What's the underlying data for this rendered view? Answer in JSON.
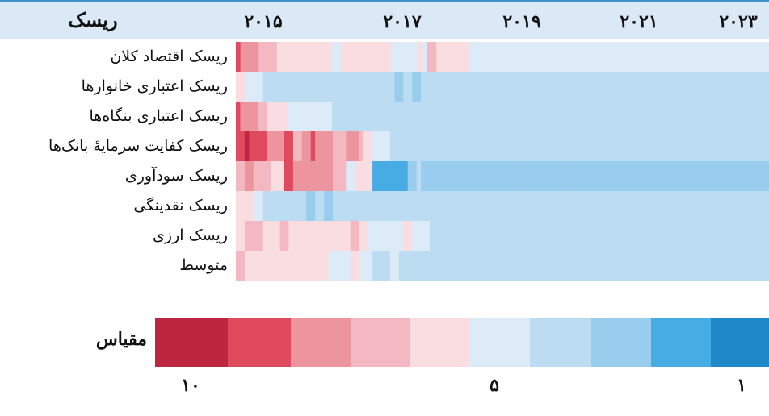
{
  "header": {
    "title": "ریسک",
    "years": [
      "۲۰۱۵",
      "۲۰۱۷",
      "۲۰۱۹",
      "۲۰۲۱",
      "۲۰۲۳"
    ]
  },
  "rows": [
    "ریسک اقتصاد کلان",
    "ریسک اعتباری خانوارها",
    "ریسک اعتباری بنگاه‌ها",
    "ریسک کفایت سرمایهٔ بانک‌ها",
    "ریسک سودآوری",
    "ریسک نقدینگی",
    "ریسک ارزی",
    "متوسط"
  ],
  "legend": {
    "label": "مقیاس",
    "tick_labels": [
      "۱۰",
      "۵",
      "۱"
    ],
    "tick_values": [
      10,
      5,
      1
    ],
    "colors": [
      "#be2640",
      "#e04a5f",
      "#ec959f",
      "#f3b8c1",
      "#fadde1",
      "#dcebf7",
      "#bcdcf2",
      "#99cdee",
      "#47ace3",
      "#1e88c8"
    ]
  },
  "chart_data": {
    "type": "heatmap",
    "scale": {
      "min": 1,
      "max": 10,
      "high_risk_color": "#be2640",
      "low_risk_color": "#1e88c8"
    },
    "row_values": [
      [
        9,
        8,
        8,
        8,
        8,
        7,
        7,
        7,
        7,
        6,
        6,
        6,
        6,
        6,
        6,
        6,
        6,
        6,
        6,
        6,
        6,
        5,
        5,
        6,
        6,
        6,
        6,
        6,
        6,
        6,
        6,
        6,
        6,
        6,
        5,
        5,
        5,
        5,
        5,
        5,
        6,
        5,
        7,
        7,
        6,
        6,
        6,
        6,
        6,
        6,
        6,
        5,
        5,
        5,
        5,
        5,
        5,
        5,
        5,
        5,
        5,
        5,
        5,
        5,
        5,
        5,
        5,
        5,
        5,
        5,
        5,
        5,
        5,
        5,
        5,
        5,
        5,
        5,
        5,
        5,
        5,
        5,
        5,
        5,
        5,
        5,
        5,
        5,
        5,
        5,
        5,
        5,
        5,
        5,
        5,
        5,
        5,
        5,
        5,
        5,
        5,
        5,
        5,
        5,
        5,
        5,
        5,
        5,
        5,
        5,
        5,
        5,
        5,
        5,
        5,
        5,
        5
      ],
      [
        6,
        6,
        5,
        5,
        5,
        5,
        4,
        4,
        4,
        4,
        4,
        4,
        4,
        4,
        4,
        4,
        4,
        4,
        4,
        4,
        4,
        4,
        4,
        4,
        4,
        4,
        4,
        4,
        4,
        4,
        4,
        4,
        4,
        4,
        4,
        4,
        3,
        3,
        4,
        4,
        3,
        3,
        4,
        4,
        4,
        4,
        4,
        4,
        4,
        4,
        4,
        4,
        4,
        4,
        4,
        4,
        4,
        4,
        4,
        4,
        4,
        4,
        4,
        4,
        4,
        4,
        4,
        4,
        4,
        4,
        4,
        4,
        4,
        4,
        4,
        4,
        4,
        4,
        4,
        4,
        4,
        4,
        4,
        4,
        4,
        4,
        4,
        4,
        4,
        4,
        4,
        4,
        4,
        4,
        4,
        4,
        4,
        4,
        4,
        4,
        4,
        4,
        4,
        4,
        4,
        4,
        4,
        4,
        4,
        4,
        4,
        4,
        4,
        4,
        4,
        4,
        4,
        4,
        4,
        4,
        4
      ],
      [
        9,
        8,
        8,
        8,
        8,
        7,
        7,
        6,
        6,
        6,
        6,
        6,
        5,
        5,
        5,
        5,
        5,
        5,
        5,
        5,
        5,
        5,
        4,
        4,
        4,
        4,
        4,
        4,
        4,
        4,
        4,
        4,
        4,
        4,
        4,
        4,
        4,
        4,
        4,
        4,
        4,
        4,
        4,
        4,
        4,
        4,
        4,
        4,
        4,
        4,
        4,
        4,
        4,
        4,
        4,
        4,
        4,
        4,
        4,
        4,
        4,
        4,
        4,
        4,
        4,
        4,
        4,
        4,
        4,
        4,
        4,
        4,
        4,
        4,
        4,
        4,
        4,
        4,
        4,
        4,
        4,
        4,
        4,
        4,
        4,
        4,
        4,
        4,
        4,
        4,
        4,
        4,
        4,
        4,
        4,
        4,
        4,
        4,
        4,
        4,
        4,
        4,
        4,
        4,
        4,
        4,
        4,
        4,
        4,
        4,
        4,
        4,
        4,
        4,
        4,
        4,
        4,
        4,
        4,
        4,
        4,
        4
      ],
      [
        9,
        9,
        10,
        9,
        9,
        9,
        9,
        8,
        8,
        8,
        8,
        9,
        9,
        7,
        7,
        8,
        8,
        9,
        8,
        8,
        8,
        8,
        7,
        7,
        7,
        8,
        8,
        8,
        7,
        6,
        6,
        5,
        5,
        5,
        5,
        4,
        4,
        4,
        4,
        4,
        4,
        4,
        4,
        4,
        4,
        4,
        4,
        4,
        4,
        4,
        4,
        4,
        4,
        4,
        4,
        4,
        4,
        4,
        4,
        4,
        4,
        4,
        4,
        4,
        4,
        4,
        4,
        4,
        4,
        4,
        4,
        4,
        4,
        4,
        4,
        4,
        4,
        4,
        4,
        4,
        4,
        4,
        4,
        4,
        4,
        4,
        4,
        4,
        4,
        4,
        4,
        4,
        4,
        4,
        4,
        4,
        4,
        4,
        4,
        4,
        4,
        4,
        4,
        4,
        4,
        4,
        4,
        4,
        4,
        4,
        4,
        4,
        4,
        4,
        4,
        4,
        4,
        4,
        4,
        4,
        4
      ],
      [
        7,
        7,
        8,
        8,
        7,
        7,
        7,
        7,
        6,
        6,
        6,
        9,
        9,
        8,
        8,
        8,
        8,
        8,
        8,
        8,
        8,
        8,
        7,
        7,
        7,
        5,
        5,
        6,
        6,
        6,
        6,
        2,
        2,
        2,
        2,
        2,
        2,
        2,
        2,
        3,
        3,
        4,
        3,
        3,
        3,
        3,
        3,
        3,
        3,
        3,
        3,
        3,
        3,
        3,
        3,
        3,
        3,
        3,
        3,
        3,
        3,
        3,
        3,
        3,
        3,
        3,
        3,
        3,
        3,
        3,
        3,
        3,
        3,
        3,
        3,
        3,
        3,
        3,
        3,
        3,
        3,
        3,
        3,
        3,
        3,
        3,
        3,
        3,
        3,
        3,
        3,
        3,
        3,
        3,
        3,
        3,
        3,
        3,
        3,
        3,
        3,
        3,
        3,
        3,
        3,
        3,
        3,
        3,
        3,
        3,
        3,
        3,
        3,
        3,
        3,
        3,
        3,
        3,
        3,
        3,
        3
      ],
      [
        6,
        6,
        6,
        6,
        5,
        5,
        4,
        4,
        4,
        4,
        4,
        4,
        4,
        4,
        4,
        4,
        3,
        3,
        4,
        4,
        3,
        3,
        4,
        4,
        4,
        4,
        4,
        4,
        4,
        4,
        4,
        4,
        4,
        4,
        4,
        4,
        4,
        4,
        4,
        4,
        4,
        4,
        4,
        4,
        4,
        4,
        4,
        4,
        4,
        4,
        4,
        4,
        4,
        4,
        4,
        4,
        4,
        4,
        4,
        4,
        4,
        4,
        4,
        4,
        4,
        4,
        4,
        4,
        4,
        4,
        4,
        4,
        4,
        4,
        4,
        4,
        4,
        4,
        4,
        4,
        4,
        4,
        4,
        4,
        4,
        4,
        4,
        4,
        4,
        4,
        4,
        4,
        4,
        4,
        4,
        4,
        4,
        4,
        4,
        4,
        4,
        4,
        4,
        4,
        4,
        4,
        4,
        4,
        4,
        4,
        4,
        4,
        4,
        4,
        4,
        4,
        4,
        4,
        4,
        4,
        4
      ],
      [
        6,
        6,
        7,
        7,
        7,
        7,
        6,
        6,
        6,
        6,
        7,
        7,
        6,
        6,
        6,
        6,
        6,
        6,
        6,
        6,
        6,
        6,
        6,
        6,
        6,
        6,
        7,
        7,
        6,
        6,
        5,
        5,
        5,
        5,
        5,
        5,
        5,
        5,
        6,
        6,
        5,
        5,
        5,
        5,
        4,
        4,
        4,
        4,
        4,
        4,
        4,
        4,
        4,
        4,
        4,
        4,
        4,
        4,
        4,
        4,
        4,
        4,
        4,
        4,
        4,
        4,
        4,
        4,
        4,
        4,
        4,
        4,
        4,
        4,
        4,
        4,
        4,
        4,
        4,
        4,
        4,
        4,
        4,
        4,
        4,
        4,
        4,
        4,
        4,
        4,
        4,
        4,
        4,
        4,
        4,
        4,
        4,
        4,
        4,
        4,
        4,
        4,
        4,
        4,
        4,
        4,
        4,
        4,
        4,
        4,
        4,
        4,
        4,
        4,
        4,
        4,
        4,
        4,
        4,
        4,
        4
      ],
      [
        7,
        7,
        6,
        6,
        6,
        6,
        6,
        6,
        6,
        6,
        6,
        6,
        6,
        6,
        6,
        6,
        6,
        6,
        6,
        6,
        6,
        5,
        5,
        5,
        5,
        5,
        6,
        6,
        5,
        5,
        5,
        4,
        4,
        4,
        4,
        5,
        5,
        4,
        4,
        4,
        4,
        4,
        4,
        4,
        4,
        4,
        4,
        4,
        4,
        4,
        4,
        4,
        4,
        4,
        4,
        4,
        4,
        4,
        4,
        4,
        4,
        4,
        4,
        4,
        4,
        4,
        4,
        4,
        4,
        4,
        4,
        4,
        4,
        4,
        4,
        4,
        4,
        4,
        4,
        4,
        4,
        4,
        4,
        4,
        4,
        4,
        4,
        4,
        4,
        4,
        4,
        4,
        4,
        4,
        4,
        4,
        4,
        4,
        4,
        4,
        4,
        4,
        4,
        4,
        4,
        4,
        4,
        4,
        4,
        4,
        4,
        4,
        4,
        4,
        4,
        4,
        4,
        4,
        4,
        4,
        4
      ]
    ]
  }
}
